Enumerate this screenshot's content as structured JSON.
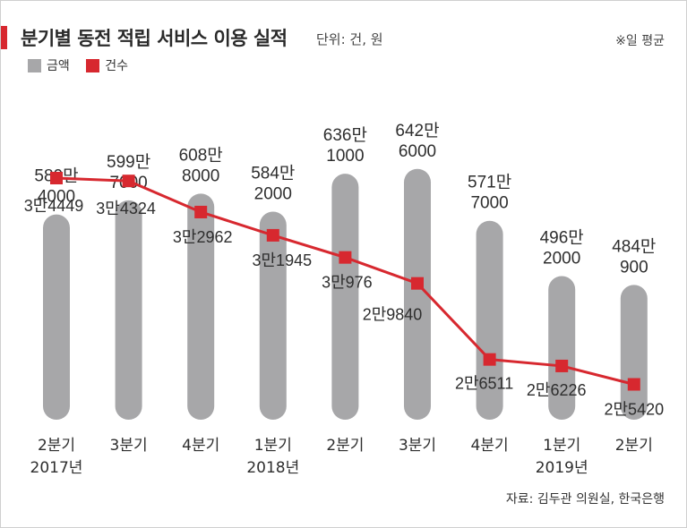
{
  "header": {
    "title": "분기별 동전 적립 서비스 이용 실적",
    "unit": "단위: 건, 원",
    "note": "※일 평균"
  },
  "legend": {
    "amount_label": "금액",
    "count_label": "건수"
  },
  "source": "자료: 김두관 의원실, 한국은행",
  "colors": {
    "accent": "#d7282f",
    "bar": "#a7a7a9",
    "line": "#d7282f",
    "text": "#2e2e2e"
  },
  "chart_data": {
    "type": "bar+line",
    "categories": [
      [
        "2분기",
        "2017년"
      ],
      [
        "3분기",
        ""
      ],
      [
        "4분기",
        ""
      ],
      [
        "1분기",
        "2018년"
      ],
      [
        "2분기",
        ""
      ],
      [
        "3분기",
        ""
      ],
      [
        "4분기",
        ""
      ],
      [
        "1분기",
        "2019년"
      ],
      [
        "2분기",
        ""
      ]
    ],
    "series": [
      {
        "name": "금액",
        "type": "bar",
        "values": [
          5804000,
          5997000,
          6088000,
          5842000,
          6361000,
          6426000,
          5717000,
          4962000,
          4840900
        ],
        "labels": [
          [
            "580만",
            "4000"
          ],
          [
            "599만",
            "7000"
          ],
          [
            "608만",
            "8000"
          ],
          [
            "584만",
            "2000"
          ],
          [
            "636만",
            "1000"
          ],
          [
            "642만",
            "6000"
          ],
          [
            "571만",
            "7000"
          ],
          [
            "496만",
            "2000"
          ],
          [
            "484만",
            "900"
          ]
        ]
      },
      {
        "name": "건수",
        "type": "line",
        "values": [
          34449,
          34324,
          32962,
          31945,
          30976,
          29840,
          26511,
          26226,
          25420
        ],
        "labels": [
          "3만4449",
          "3만4324",
          "3만2962",
          "3만1945",
          "3만976",
          "2만9840",
          "2만6511",
          "2만6226",
          "2만5420"
        ]
      }
    ]
  }
}
